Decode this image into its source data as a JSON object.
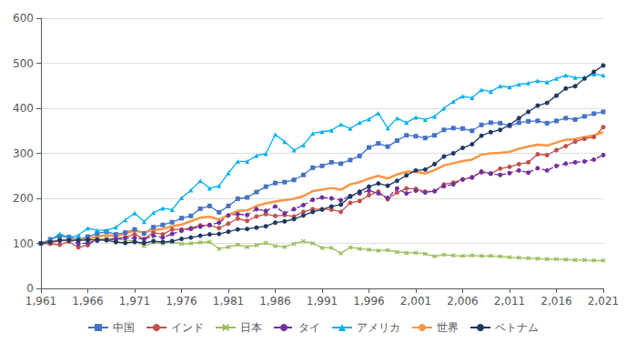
{
  "chart_data": {
    "type": "line",
    "x": [
      1961,
      1962,
      1963,
      1964,
      1965,
      1966,
      1967,
      1968,
      1969,
      1970,
      1971,
      1972,
      1973,
      1974,
      1975,
      1976,
      1977,
      1978,
      1979,
      1980,
      1981,
      1982,
      1983,
      1984,
      1985,
      1986,
      1987,
      1988,
      1989,
      1990,
      1991,
      1992,
      1993,
      1994,
      1995,
      1996,
      1997,
      1998,
      1999,
      2000,
      2001,
      2002,
      2003,
      2004,
      2005,
      2006,
      2007,
      2008,
      2009,
      2010,
      2011,
      2012,
      2013,
      2014,
      2015,
      2016,
      2017,
      2018,
      2019,
      2020,
      2021
    ],
    "series": [
      {
        "name": "中国",
        "color": "#4472C4",
        "marker": "square",
        "line_style": "solid",
        "values": [
          100,
          109,
          116,
          114,
          109,
          115,
          122,
          126,
          120,
          124,
          131,
          122,
          136,
          141,
          147,
          156,
          161,
          177,
          183,
          169,
          183,
          199,
          202,
          214,
          226,
          234,
          236,
          241,
          252,
          268,
          272,
          280,
          277,
          285,
          294,
          313,
          322,
          315,
          328,
          340,
          338,
          334,
          340,
          352,
          356,
          355,
          350,
          363,
          368,
          367,
          361,
          368,
          371,
          372,
          367,
          372,
          378,
          375,
          382,
          388,
          392
        ]
      },
      {
        "name": "インド",
        "color": "#C0504D",
        "marker": "circle",
        "line_style": "solid",
        "values": [
          100,
          99,
          97,
          104,
          91,
          96,
          110,
          108,
          108,
          114,
          120,
          110,
          124,
          120,
          131,
          131,
          134,
          140,
          140,
          134,
          144,
          155,
          150,
          160,
          165,
          161,
          163,
          160,
          170,
          176,
          176,
          175,
          170,
          190,
          194,
          207,
          215,
          198,
          213,
          222,
          221,
          215,
          216,
          231,
          235,
          242,
          246,
          260,
          255,
          266,
          270,
          276,
          280,
          298,
          296,
          307,
          316,
          326,
          332,
          336,
          358
        ]
      },
      {
        "name": "日本",
        "color": "#9BBB59",
        "marker": "x",
        "line_style": "solid",
        "values": [
          100,
          105,
          108,
          109,
          108,
          107,
          109,
          111,
          110,
          107,
          106,
          94,
          102,
          100,
          103,
          99,
          100,
          102,
          103,
          88,
          92,
          97,
          92,
          96,
          101,
          94,
          92,
          99,
          105,
          100,
          90,
          90,
          78,
          91,
          88,
          86,
          84,
          85,
          81,
          79,
          79,
          77,
          71,
          75,
          73,
          72,
          73,
          72,
          72,
          71,
          69,
          68,
          67,
          66,
          65,
          65,
          64,
          63,
          63,
          62,
          62
        ]
      },
      {
        "name": "タイ",
        "color": "#7030A0",
        "marker": "circle",
        "line_style": "dashed",
        "values": [
          100,
          104,
          106,
          109,
          99,
          101,
          106,
          108,
          111,
          112,
          112,
          109,
          117,
          113,
          121,
          128,
          132,
          137,
          141,
          146,
          162,
          165,
          163,
          176,
          172,
          182,
          167,
          176,
          185,
          197,
          202,
          200,
          196,
          205,
          211,
          217,
          211,
          201,
          222,
          211,
          217,
          213,
          216,
          227,
          231,
          242,
          247,
          258,
          255,
          252,
          256,
          262,
          257,
          267,
          262,
          272,
          277,
          280,
          282,
          286,
          296
        ]
      },
      {
        "name": "アメリカ",
        "color": "#00B0F0",
        "marker": "triangle",
        "line_style": "solid",
        "values": [
          100,
          107,
          121,
          113,
          118,
          134,
          129,
          129,
          136,
          152,
          167,
          148,
          168,
          178,
          175,
          201,
          218,
          239,
          222,
          228,
          256,
          282,
          282,
          295,
          299,
          342,
          326,
          307,
          318,
          344,
          348,
          351,
          364,
          355,
          368,
          376,
          389,
          356,
          378,
          368,
          380,
          375,
          382,
          400,
          415,
          427,
          423,
          441,
          437,
          449,
          447,
          453,
          456,
          461,
          458,
          466,
          473,
          468,
          468,
          476,
          473
        ]
      },
      {
        "name": "世界",
        "color": "#F79646",
        "marker": "none",
        "line_style": "solid",
        "values": [
          100,
          103,
          106,
          108,
          107,
          110,
          115,
          118,
          116,
          122,
          128,
          124,
          130,
          132,
          138,
          142,
          149,
          157,
          159,
          153,
          163,
          172,
          173,
          183,
          189,
          193,
          196,
          199,
          205,
          216,
          219,
          223,
          219,
          231,
          236,
          244,
          250,
          244,
          253,
          259,
          259,
          255,
          263,
          273,
          278,
          283,
          286,
          297,
          300,
          301,
          303,
          310,
          315,
          319,
          317,
          324,
          330,
          332,
          336,
          340,
          347
        ]
      },
      {
        "name": "ベトナム",
        "color": "#1F3864",
        "marker": "circle",
        "line_style": "solid",
        "values": [
          100,
          103,
          107,
          107,
          107,
          108,
          108,
          107,
          103,
          101,
          103,
          101,
          105,
          103,
          105,
          110,
          113,
          117,
          120,
          121,
          126,
          131,
          132,
          135,
          138,
          146,
          149,
          154,
          162,
          170,
          175,
          182,
          186,
          204,
          215,
          226,
          233,
          228,
          239,
          251,
          262,
          264,
          276,
          293,
          300,
          312,
          320,
          339,
          347,
          352,
          363,
          378,
          392,
          406,
          412,
          428,
          444,
          449,
          466,
          481,
          495
        ]
      }
    ],
    "xlim": [
      1961,
      2021
    ],
    "xticks": [
      1961,
      1966,
      1971,
      1976,
      1981,
      1986,
      1991,
      1996,
      2001,
      2006,
      2011,
      2016,
      2021
    ],
    "ylim": [
      0,
      600
    ],
    "yticks": [
      0,
      100,
      200,
      300,
      400,
      500,
      600
    ],
    "grid": "y",
    "legend": "bottom"
  }
}
